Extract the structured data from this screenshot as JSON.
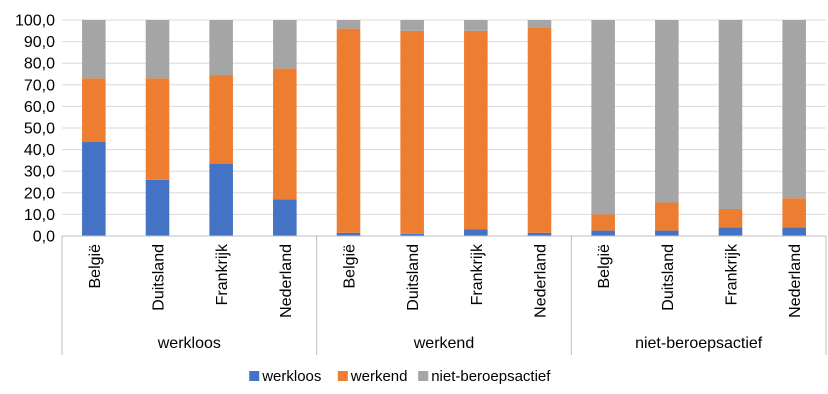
{
  "chart_data": {
    "type": "bar",
    "stacked": true,
    "title": "",
    "xlabel": "",
    "ylabel": "",
    "ylim": [
      0,
      100
    ],
    "y_ticks": [
      "0,0",
      "10,0",
      "20,0",
      "30,0",
      "40,0",
      "50,0",
      "60,0",
      "70,0",
      "80,0",
      "90,0",
      "100,0"
    ],
    "grid": true,
    "legend_position": "bottom",
    "groups": [
      {
        "label": "werkloos",
        "categories": [
          "België",
          "Duitsland",
          "Frankrijk",
          "Nederland"
        ]
      },
      {
        "label": "werkend",
        "categories": [
          "België",
          "Duitsland",
          "Frankrijk",
          "Nederland"
        ]
      },
      {
        "label": "niet-beroepsactief",
        "categories": [
          "België",
          "Duitsland",
          "Frankrijk",
          "Nederland"
        ]
      }
    ],
    "series": [
      {
        "name": "werkloos",
        "color": "#4472C4",
        "values": [
          43.5,
          26.0,
          33.5,
          17.0,
          1.5,
          1.0,
          3.0,
          1.5,
          2.5,
          2.5,
          4.0,
          4.0
        ]
      },
      {
        "name": "werkend",
        "color": "#ED7D31",
        "values": [
          29.5,
          47.0,
          41.0,
          60.5,
          94.5,
          94.0,
          92.0,
          95.0,
          7.5,
          13.0,
          8.5,
          13.5
        ]
      },
      {
        "name": "niet-beroepsactief",
        "color": "#A5A5A5",
        "values": [
          27.0,
          27.0,
          25.5,
          22.5,
          4.0,
          5.0,
          5.0,
          3.5,
          90.0,
          84.5,
          87.5,
          82.5
        ]
      }
    ]
  }
}
